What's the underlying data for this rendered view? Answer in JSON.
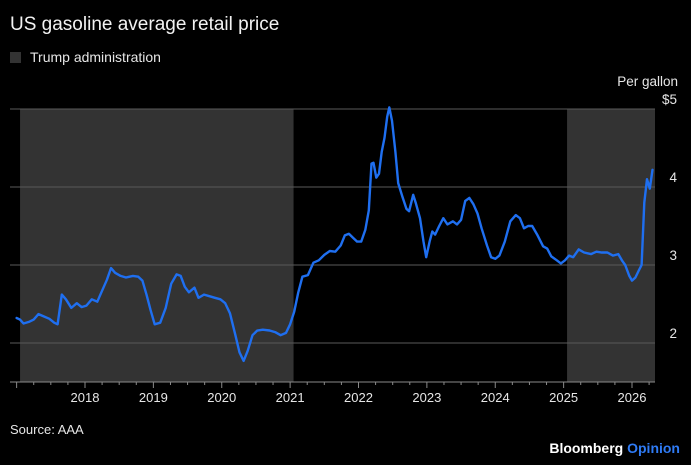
{
  "title": "US gasoline average retail price",
  "legend": {
    "label": "Trump administration",
    "color": "#333333"
  },
  "unit_label": "Per gallon",
  "source": "Source: AAA",
  "brand": {
    "name": "Bloomberg",
    "product": "Opinion"
  },
  "colors": {
    "line": "#1f6ff0",
    "shade": "#333333",
    "grid": "#5a5a5a",
    "background": "#000000"
  },
  "chart_data": {
    "type": "line",
    "title": "US gasoline average retail price",
    "xlim": [
      2017.0,
      2026.35
    ],
    "ylim": [
      1.5,
      5.0
    ],
    "y_ticks": [
      {
        "value": 5,
        "label": "$5"
      },
      {
        "value": 4,
        "label": "4"
      },
      {
        "value": 3,
        "label": "3"
      },
      {
        "value": 2,
        "label": "2"
      }
    ],
    "x_ticks": [
      {
        "value": 2018,
        "label": "2018"
      },
      {
        "value": 2019,
        "label": "2019"
      },
      {
        "value": 2020,
        "label": "2020"
      },
      {
        "value": 2021,
        "label": "2021"
      },
      {
        "value": 2022,
        "label": "2022"
      },
      {
        "value": 2023,
        "label": "2023"
      },
      {
        "value": 2024,
        "label": "2024"
      },
      {
        "value": 2025,
        "label": "2025"
      },
      {
        "value": 2026,
        "label": "2026"
      }
    ],
    "shaded_ranges": [
      {
        "start": 2017.05,
        "end": 2021.05,
        "label": "Trump administration"
      },
      {
        "start": 2025.05,
        "end": 2026.35,
        "label": "Trump administration"
      }
    ],
    "grid": true,
    "series": [
      {
        "color": "#1f6ff0",
        "points": [
          [
            2017.0,
            2.32
          ],
          [
            2017.05,
            2.3
          ],
          [
            2017.1,
            2.25
          ],
          [
            2017.18,
            2.27
          ],
          [
            2017.25,
            2.3
          ],
          [
            2017.32,
            2.37
          ],
          [
            2017.4,
            2.34
          ],
          [
            2017.48,
            2.31
          ],
          [
            2017.55,
            2.26
          ],
          [
            2017.6,
            2.24
          ],
          [
            2017.66,
            2.62
          ],
          [
            2017.72,
            2.56
          ],
          [
            2017.8,
            2.45
          ],
          [
            2017.88,
            2.51
          ],
          [
            2017.95,
            2.46
          ],
          [
            2018.02,
            2.48
          ],
          [
            2018.1,
            2.56
          ],
          [
            2018.18,
            2.53
          ],
          [
            2018.25,
            2.67
          ],
          [
            2018.32,
            2.81
          ],
          [
            2018.38,
            2.96
          ],
          [
            2018.44,
            2.9
          ],
          [
            2018.52,
            2.86
          ],
          [
            2018.6,
            2.84
          ],
          [
            2018.7,
            2.86
          ],
          [
            2018.78,
            2.85
          ],
          [
            2018.84,
            2.8
          ],
          [
            2018.9,
            2.62
          ],
          [
            2018.96,
            2.42
          ],
          [
            2019.02,
            2.24
          ],
          [
            2019.1,
            2.26
          ],
          [
            2019.18,
            2.45
          ],
          [
            2019.26,
            2.76
          ],
          [
            2019.34,
            2.88
          ],
          [
            2019.4,
            2.86
          ],
          [
            2019.46,
            2.72
          ],
          [
            2019.52,
            2.65
          ],
          [
            2019.6,
            2.71
          ],
          [
            2019.66,
            2.58
          ],
          [
            2019.74,
            2.62
          ],
          [
            2019.82,
            2.6
          ],
          [
            2019.9,
            2.58
          ],
          [
            2019.98,
            2.56
          ],
          [
            2020.05,
            2.51
          ],
          [
            2020.12,
            2.38
          ],
          [
            2020.2,
            2.1
          ],
          [
            2020.26,
            1.88
          ],
          [
            2020.32,
            1.77
          ],
          [
            2020.38,
            1.9
          ],
          [
            2020.45,
            2.1
          ],
          [
            2020.52,
            2.16
          ],
          [
            2020.6,
            2.17
          ],
          [
            2020.7,
            2.16
          ],
          [
            2020.78,
            2.14
          ],
          [
            2020.86,
            2.1
          ],
          [
            2020.94,
            2.13
          ],
          [
            2021.0,
            2.24
          ],
          [
            2021.06,
            2.4
          ],
          [
            2021.12,
            2.65
          ],
          [
            2021.18,
            2.85
          ],
          [
            2021.26,
            2.87
          ],
          [
            2021.34,
            3.03
          ],
          [
            2021.42,
            3.06
          ],
          [
            2021.5,
            3.13
          ],
          [
            2021.58,
            3.18
          ],
          [
            2021.66,
            3.17
          ],
          [
            2021.74,
            3.25
          ],
          [
            2021.8,
            3.38
          ],
          [
            2021.86,
            3.4
          ],
          [
            2021.92,
            3.35
          ],
          [
            2021.98,
            3.3
          ],
          [
            2022.04,
            3.3
          ],
          [
            2022.1,
            3.45
          ],
          [
            2022.15,
            3.7
          ],
          [
            2022.19,
            4.3
          ],
          [
            2022.22,
            4.31
          ],
          [
            2022.26,
            4.12
          ],
          [
            2022.3,
            4.17
          ],
          [
            2022.34,
            4.45
          ],
          [
            2022.38,
            4.63
          ],
          [
            2022.42,
            4.9
          ],
          [
            2022.45,
            5.02
          ],
          [
            2022.49,
            4.85
          ],
          [
            2022.54,
            4.45
          ],
          [
            2022.58,
            4.05
          ],
          [
            2022.64,
            3.88
          ],
          [
            2022.7,
            3.72
          ],
          [
            2022.74,
            3.69
          ],
          [
            2022.8,
            3.9
          ],
          [
            2022.84,
            3.79
          ],
          [
            2022.9,
            3.6
          ],
          [
            2022.95,
            3.3
          ],
          [
            2022.99,
            3.1
          ],
          [
            2023.04,
            3.3
          ],
          [
            2023.08,
            3.43
          ],
          [
            2023.12,
            3.39
          ],
          [
            2023.18,
            3.5
          ],
          [
            2023.24,
            3.6
          ],
          [
            2023.3,
            3.52
          ],
          [
            2023.38,
            3.56
          ],
          [
            2023.44,
            3.52
          ],
          [
            2023.5,
            3.58
          ],
          [
            2023.56,
            3.82
          ],
          [
            2023.62,
            3.86
          ],
          [
            2023.68,
            3.78
          ],
          [
            2023.74,
            3.66
          ],
          [
            2023.8,
            3.47
          ],
          [
            2023.88,
            3.25
          ],
          [
            2023.94,
            3.1
          ],
          [
            2024.0,
            3.08
          ],
          [
            2024.06,
            3.12
          ],
          [
            2024.14,
            3.3
          ],
          [
            2024.22,
            3.56
          ],
          [
            2024.3,
            3.64
          ],
          [
            2024.36,
            3.6
          ],
          [
            2024.42,
            3.47
          ],
          [
            2024.48,
            3.5
          ],
          [
            2024.54,
            3.5
          ],
          [
            2024.62,
            3.38
          ],
          [
            2024.7,
            3.24
          ],
          [
            2024.76,
            3.21
          ],
          [
            2024.82,
            3.11
          ],
          [
            2024.9,
            3.06
          ],
          [
            2024.96,
            3.02
          ],
          [
            2025.02,
            3.06
          ],
          [
            2025.08,
            3.12
          ],
          [
            2025.14,
            3.1
          ],
          [
            2025.22,
            3.2
          ],
          [
            2025.3,
            3.16
          ],
          [
            2025.4,
            3.14
          ],
          [
            2025.48,
            3.17
          ],
          [
            2025.56,
            3.16
          ],
          [
            2025.64,
            3.16
          ],
          [
            2025.72,
            3.12
          ],
          [
            2025.8,
            3.14
          ],
          [
            2025.86,
            3.05
          ],
          [
            2025.9,
            3.0
          ],
          [
            2025.96,
            2.86
          ],
          [
            2026.0,
            2.8
          ],
          [
            2026.05,
            2.84
          ],
          [
            2026.1,
            2.93
          ],
          [
            2026.14,
            3.0
          ],
          [
            2026.18,
            3.8
          ],
          [
            2026.22,
            4.1
          ],
          [
            2026.26,
            3.98
          ],
          [
            2026.3,
            4.22
          ]
        ]
      }
    ]
  }
}
